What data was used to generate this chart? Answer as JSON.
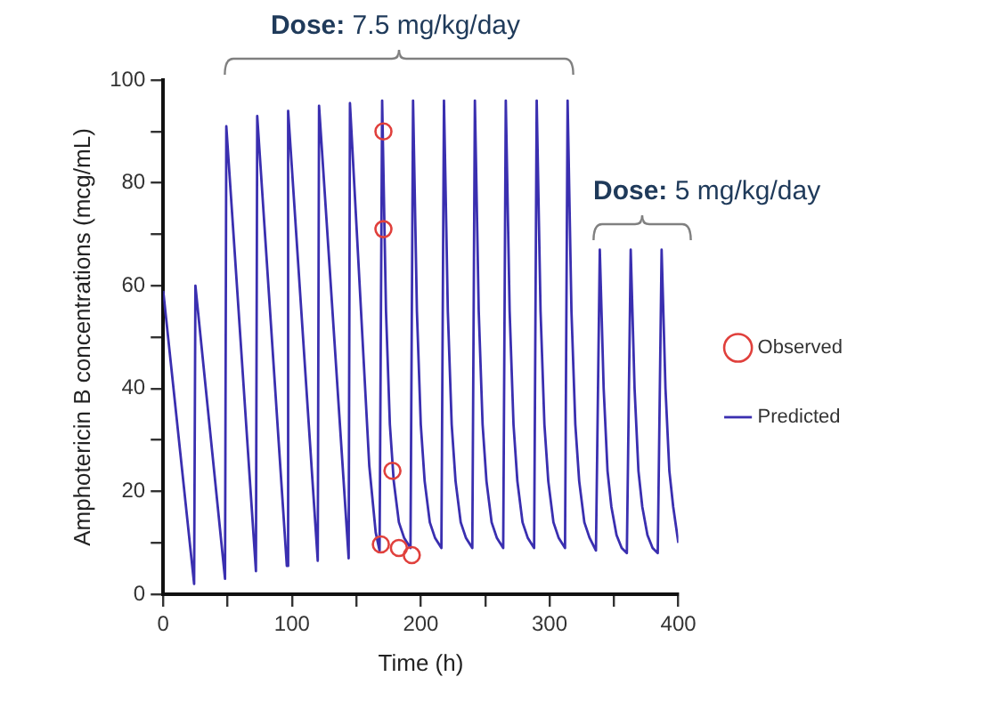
{
  "chart_data": {
    "type": "line",
    "xlabel": "Time (h)",
    "ylabel": "Amphotericin B concentrations (mcg/mL)",
    "xlim": [
      0,
      400
    ],
    "xticks": [
      0,
      {
        "value": 50,
        "label": null
      },
      100,
      {
        "value": 150,
        "label": null
      },
      200,
      {
        "value": 250,
        "label": null
      },
      300,
      {
        "value": 350,
        "label": null
      },
      400
    ],
    "ylim": [
      0,
      100
    ],
    "yticks": [
      0,
      {
        "value": 10,
        "label": null
      },
      20,
      {
        "value": 30,
        "label": null
      },
      40,
      {
        "value": 50,
        "label": null
      },
      60,
      {
        "value": 70,
        "label": null
      },
      80,
      {
        "value": 90,
        "label": null
      },
      100
    ],
    "legend": "right",
    "annotations": [
      "Dose: 7.5 mg/kg/day",
      "Dose: 5 mg/kg/day"
    ],
    "series": [
      {
        "name": "Observed",
        "type": "scatter",
        "marker": "circle",
        "color": "#e0403c",
        "x": [
          169,
          171,
          171,
          178,
          183,
          193
        ],
        "values": [
          9.7,
          90,
          71,
          24,
          9,
          7.6
        ]
      },
      {
        "name": "Predicted",
        "type": "line",
        "marker": "none",
        "color": "#3a2fb0",
        "x": [
          0,
          24,
          25,
          48,
          49,
          72,
          73,
          96,
          97,
          120,
          121,
          144,
          145,
          160,
          165,
          168,
          170,
          173,
          176,
          179,
          183,
          187,
          192,
          194,
          197,
          200,
          203,
          207,
          211,
          216,
          218,
          221,
          224,
          227,
          231,
          235,
          240,
          242,
          245,
          248,
          251,
          255,
          259,
          264,
          266,
          269,
          272,
          275,
          279,
          283,
          288,
          290,
          293,
          296,
          299,
          303,
          307,
          312,
          314,
          317,
          320,
          323,
          327,
          331,
          336,
          339,
          342,
          345,
          348,
          352,
          356,
          360,
          363,
          366,
          369,
          372,
          376,
          380,
          384,
          387,
          390,
          393,
          396,
          400
        ],
        "values": [
          59,
          2,
          60,
          3,
          91,
          4.5,
          93,
          5.5,
          94,
          6.5,
          95,
          7,
          95.5,
          25,
          12,
          8.5,
          96,
          55,
          33,
          22,
          14,
          11,
          9,
          96,
          55,
          33,
          22,
          14,
          11,
          9,
          96,
          55,
          33,
          22,
          14,
          11,
          9,
          96,
          55,
          33,
          22,
          14,
          11,
          9,
          96,
          55,
          33,
          22,
          14,
          11,
          9,
          96,
          55,
          33,
          22,
          14,
          11,
          9,
          96,
          55,
          33,
          22,
          14,
          11,
          8.5,
          67,
          40,
          24,
          17,
          11.5,
          9,
          8,
          67,
          40,
          24,
          17,
          11.5,
          9,
          8,
          67,
          40,
          24,
          17,
          10
        ]
      }
    ]
  }
}
